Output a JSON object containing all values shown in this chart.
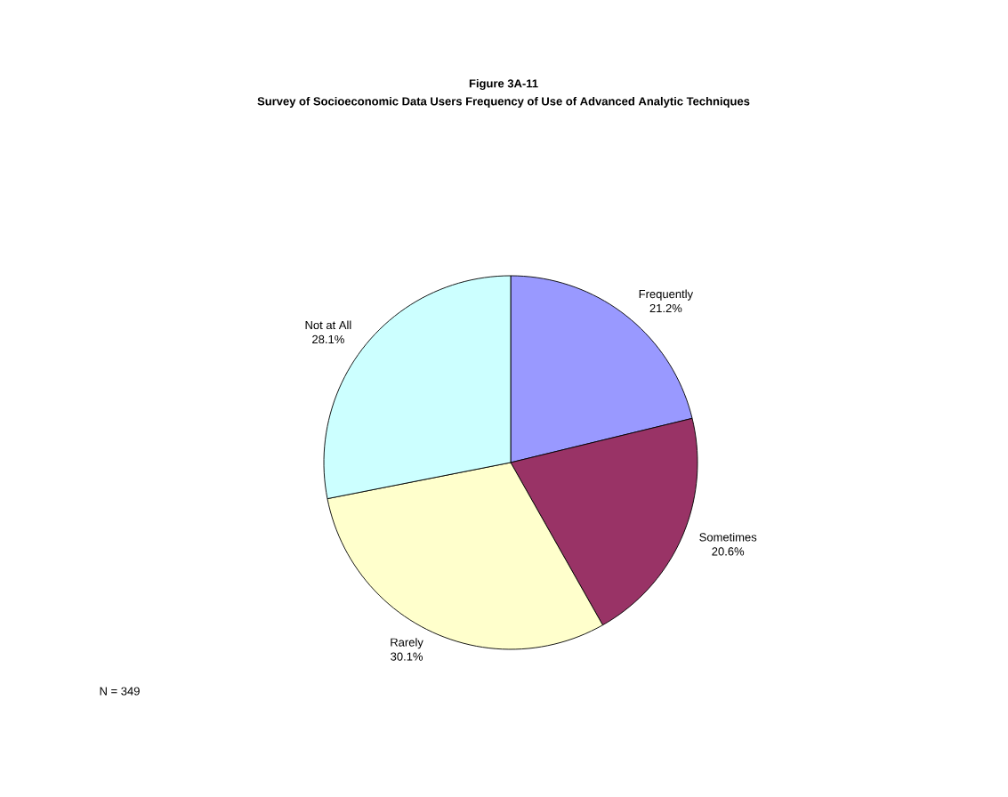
{
  "chart_data": {
    "type": "pie",
    "title": "Figure 3A-11",
    "subtitle": "Survey of Socioeconomic Data Users Frequency of Use of Advanced Analytic Techniques",
    "categories": [
      "Frequently",
      "Sometimes",
      "Rarely",
      "Not at All"
    ],
    "values": [
      21.2,
      20.6,
      30.1,
      28.1
    ],
    "value_labels": [
      "21.2%",
      "20.6%",
      "30.1%",
      "28.1%"
    ],
    "colors": [
      "#9999ff",
      "#993366",
      "#ffffcc",
      "#ccffff"
    ],
    "annotations": [
      "N = 349"
    ]
  }
}
